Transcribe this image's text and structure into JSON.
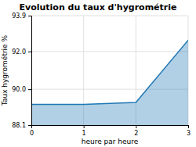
{
  "chart_data": {
    "type": "area",
    "title": "Evolution du taux d'hygrométrie",
    "xlabel": "heure par heure",
    "ylabel": "Taux hygrométrie %",
    "x": [
      0,
      1,
      2,
      3
    ],
    "values": [
      89.2,
      89.2,
      89.3,
      92.6
    ],
    "xlim": [
      0,
      3
    ],
    "ylim": [
      88.1,
      93.9
    ],
    "xticks": [
      0,
      1,
      2,
      3
    ],
    "yticks": [
      88.1,
      {
        "value": 90,
        "label": "90.0"
      },
      {
        "value": 92,
        "label": "92.0"
      },
      93.9
    ],
    "grid": true
  }
}
